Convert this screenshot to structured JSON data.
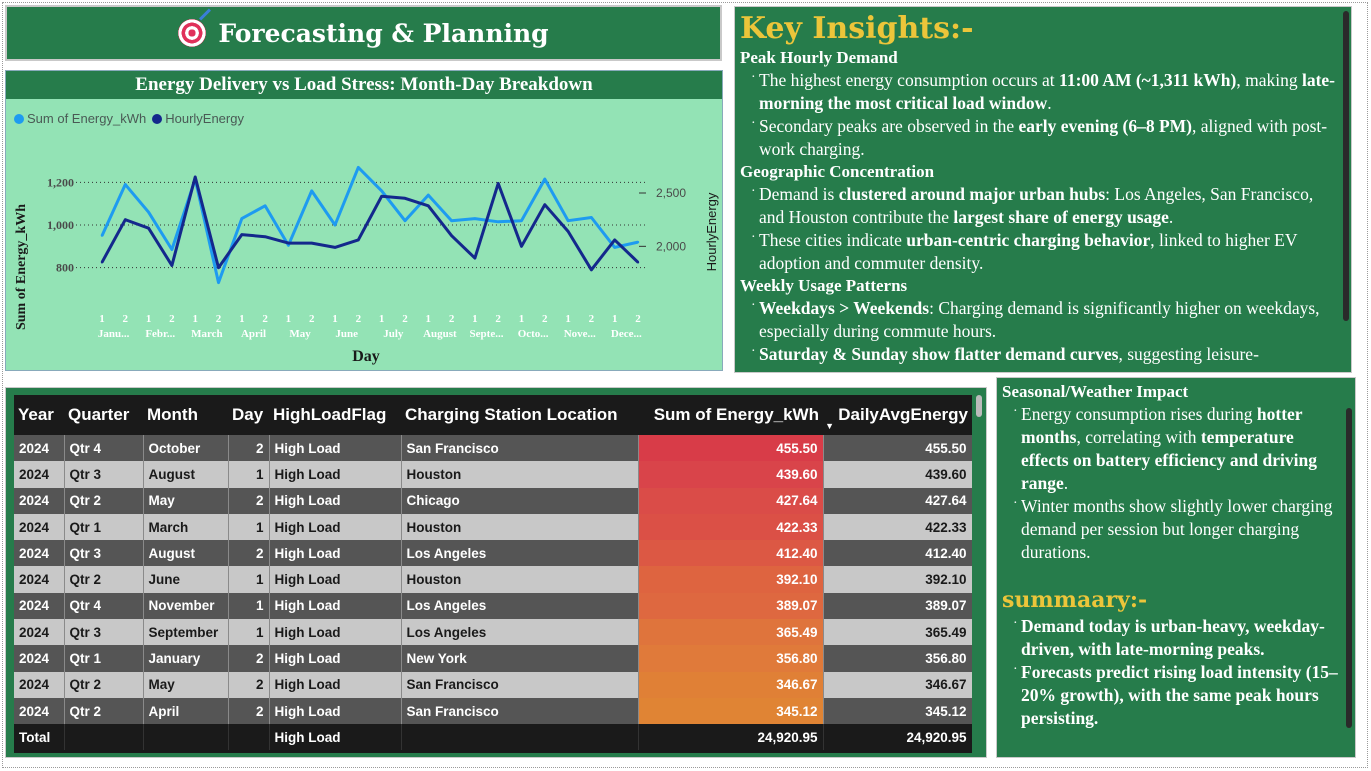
{
  "header": {
    "title": "Forecasting & Planning",
    "icon": "target-icon"
  },
  "chart": {
    "title": "Energy Delivery vs Load Stress: Month-Day Breakdown",
    "legend": [
      {
        "name": "Sum of Energy_kWh",
        "color": "#1e9bf0"
      },
      {
        "name": "HourlyEnergy",
        "color": "#14288c"
      }
    ]
  },
  "chart_data": {
    "type": "line",
    "title": "Energy Delivery vs Load Stress: Month-Day Breakdown",
    "xlabel": "Day",
    "ylabel": "Sum of Energy_kWh",
    "y2label": "HourlyEnergy",
    "ylim": [
      700,
      1300
    ],
    "y2lim": [
      1600,
      2800
    ],
    "yticks": [
      800,
      1000,
      1200
    ],
    "yticklabels": [
      "800",
      "1,000",
      "1,200"
    ],
    "y2ticks": [
      2000,
      2500
    ],
    "y2ticklabels": [
      "2,000",
      "2,500"
    ],
    "legend_position": "top-left",
    "grid": true,
    "x_days": [
      "1",
      "2",
      "1",
      "2",
      "1",
      "2",
      "1",
      "2",
      "1",
      "2",
      "1",
      "2",
      "1",
      "2",
      "1",
      "2",
      "1",
      "2",
      "1",
      "2",
      "1",
      "2",
      "1",
      "2"
    ],
    "x_months": [
      "Janu...",
      "Febr...",
      "March",
      "April",
      "May",
      "June",
      "July",
      "August",
      "Septe...",
      "Octo...",
      "Nove...",
      "Dece..."
    ],
    "series": [
      {
        "name": "Sum of Energy_kWh",
        "color": "#1e9bf0",
        "values": [
          950,
          1190,
          1060,
          885,
          1215,
          730,
          1030,
          1090,
          905,
          1160,
          1000,
          1270,
          1160,
          1020,
          1140,
          1020,
          1030,
          1015,
          1020,
          1215,
          1020,
          1035,
          895,
          920
        ]
      },
      {
        "name": "HourlyEnergy",
        "color": "#14288c",
        "values": [
          1850,
          2250,
          2170,
          1820,
          2650,
          1800,
          2110,
          2090,
          2030,
          2030,
          1990,
          2060,
          2470,
          2450,
          2380,
          2100,
          1890,
          2590,
          2000,
          2390,
          2140,
          1780,
          2060,
          1850
        ]
      }
    ]
  },
  "insights": {
    "title": "Key Insights:-",
    "sections": [
      {
        "heading": "Peak Hourly Demand"
      },
      {
        "heading": "Geographic Concentration"
      },
      {
        "heading": "Weekly Usage Patterns"
      }
    ],
    "peak_b1": {
      "a": "The highest energy consumption occurs at ",
      "b": "11:00 AM (~1,311 kWh)",
      "c": ", making ",
      "d": "late-morning the most critical load window",
      "e": "."
    },
    "peak_b2": {
      "a": "Secondary peaks are observed in the ",
      "b": "early evening (6–8 PM)",
      "c": ", aligned with post-work charging."
    },
    "geo_b1": {
      "a": "Demand is ",
      "b": "clustered around major urban hubs",
      "c": ": Los Angeles, San Francisco, and Houston contribute the ",
      "d": "largest share of energy usage",
      "e": "."
    },
    "geo_b2": {
      "a": "These cities indicate ",
      "b": "urban-centric charging behavior",
      "c": ", linked to higher EV adoption and commuter density."
    },
    "week_b1": {
      "b": "Weekdays > Weekends",
      "c": ": Charging demand is significantly higher on weekdays, especially during commute hours."
    },
    "week_b2": {
      "b": "Saturday & Sunday show flatter demand curves",
      "c": ", suggesting leisure-"
    }
  },
  "table": {
    "columns": [
      "Year",
      "Quarter",
      "Month",
      "Day",
      "HighLoadFlag",
      "Charging Station Location",
      "Sum of Energy_kWh",
      "DailyAvgEnergy"
    ],
    "sort_indicator": "▼",
    "rows": [
      {
        "year": "2024",
        "quarter": "Qtr 4",
        "month": "October",
        "day": "2",
        "flag": "High Load",
        "location": "San Francisco",
        "energy": "455.50",
        "avg": "455.50",
        "color": "#d83c48"
      },
      {
        "year": "2024",
        "quarter": "Qtr 3",
        "month": "August",
        "day": "1",
        "flag": "High Load",
        "location": "Houston",
        "energy": "439.60",
        "avg": "439.60",
        "color": "#d9444a"
      },
      {
        "year": "2024",
        "quarter": "Qtr 2",
        "month": "May",
        "day": "2",
        "flag": "High Load",
        "location": "Chicago",
        "energy": "427.64",
        "avg": "427.64",
        "color": "#da4c48"
      },
      {
        "year": "2024",
        "quarter": "Qtr 1",
        "month": "March",
        "day": "1",
        "flag": "High Load",
        "location": "Houston",
        "energy": "422.33",
        "avg": "422.33",
        "color": "#db5046"
      },
      {
        "year": "2024",
        "quarter": "Qtr 3",
        "month": "August",
        "day": "2",
        "flag": "High Load",
        "location": "Los Angeles",
        "energy": "412.40",
        "avg": "412.40",
        "color": "#dc5844"
      },
      {
        "year": "2024",
        "quarter": "Qtr 2",
        "month": "June",
        "day": "1",
        "flag": "High Load",
        "location": "Houston",
        "energy": "392.10",
        "avg": "392.10",
        "color": "#de6440"
      },
      {
        "year": "2024",
        "quarter": "Qtr 4",
        "month": "November",
        "day": "1",
        "flag": "High Load",
        "location": "Los Angeles",
        "energy": "389.07",
        "avg": "389.07",
        "color": "#de6840"
      },
      {
        "year": "2024",
        "quarter": "Qtr 3",
        "month": "September",
        "day": "1",
        "flag": "High Load",
        "location": "Los Angeles",
        "energy": "365.49",
        "avg": "365.49",
        "color": "#df743c"
      },
      {
        "year": "2024",
        "quarter": "Qtr 1",
        "month": "January",
        "day": "2",
        "flag": "High Load",
        "location": "New York",
        "energy": "356.80",
        "avg": "356.80",
        "color": "#e07a3a"
      },
      {
        "year": "2024",
        "quarter": "Qtr 2",
        "month": "May",
        "day": "2",
        "flag": "High Load",
        "location": "San Francisco",
        "energy": "346.67",
        "avg": "346.67",
        "color": "#e08036"
      },
      {
        "year": "2024",
        "quarter": "Qtr 2",
        "month": "April",
        "day": "2",
        "flag": "High Load",
        "location": "San Francisco",
        "energy": "345.12",
        "avg": "345.12",
        "color": "#e08434"
      }
    ],
    "total": {
      "label": "Total",
      "flag": "High Load",
      "energy": "24,920.95",
      "avg": "24,920.95"
    }
  },
  "seasonal": {
    "heading": "Seasonal/Weather Impact",
    "b1": {
      "a": "Energy consumption rises during ",
      "b": "hotter months",
      "c": ", correlating with ",
      "d": "temperature effects on battery efficiency and driving range",
      "e": "."
    },
    "b2": "Winter months show slightly lower charging demand per session but longer charging durations.",
    "summary_title": "summaary:-",
    "s1": "Demand today is urban-heavy, weekday-driven, with late-morning peaks.",
    "s2": "Forecasts predict rising load intensity (15–20% growth), with the same peak hours persisting."
  }
}
